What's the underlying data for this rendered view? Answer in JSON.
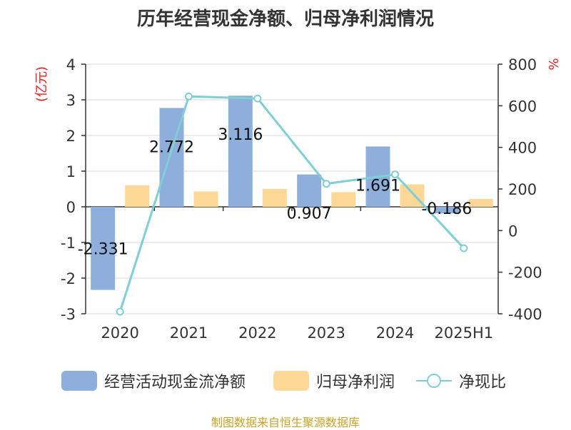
{
  "chart_data": {
    "type": "bar",
    "title": "历年经营现金净额、归母净利润情况",
    "categories": [
      "2020",
      "2021",
      "2022",
      "2023",
      "2024",
      "2025H1"
    ],
    "left_axis": {
      "unit": "(亿元)",
      "ylim": [
        -3,
        4
      ],
      "ticks": [
        4,
        3,
        2,
        1,
        0,
        -1,
        -2,
        -3
      ]
    },
    "right_axis": {
      "unit": "%",
      "ylim": [
        -400,
        800
      ],
      "ticks": [
        800,
        600,
        400,
        200,
        0,
        -200,
        -400
      ]
    },
    "series": [
      {
        "name": "经营活动现金流净额",
        "type": "bar",
        "axis": "left",
        "color": "#8eaedb",
        "values": [
          -2.331,
          2.772,
          3.116,
          0.907,
          1.691,
          -0.186
        ],
        "labels": [
          "-2.331",
          "2.772",
          "3.116",
          "0.907",
          "1.691",
          "-0.186"
        ]
      },
      {
        "name": "归母净利润",
        "type": "bar",
        "axis": "left",
        "color": "#fdd796",
        "values": [
          0.6,
          0.43,
          0.5,
          0.41,
          0.63,
          0.22
        ]
      },
      {
        "name": "净现比",
        "type": "line",
        "axis": "right",
        "color": "#7ecfd6",
        "values": [
          -390,
          645,
          635,
          225,
          270,
          -85
        ]
      }
    ],
    "grid": true,
    "legend_position": "bottom"
  },
  "legend": {
    "items": [
      "经营活动现金流净额",
      "归母净利润",
      "净现比"
    ]
  },
  "source": "制图数据来自恒生聚源数据库"
}
